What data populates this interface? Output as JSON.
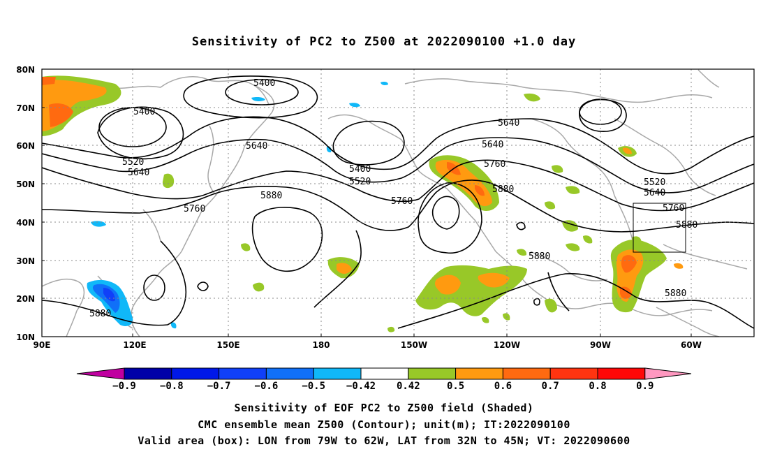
{
  "title": "Sensitivity of PC2 to Z500 at 2022090100 +1.0 day",
  "map": {
    "lat_labels": [
      "80N",
      "70N",
      "60N",
      "50N",
      "40N",
      "30N",
      "20N",
      "10N"
    ],
    "lon_labels": [
      "90E",
      "120E",
      "150E",
      "180",
      "150W",
      "120W",
      "90W",
      "60W"
    ],
    "lon_range": [
      "90E",
      "30W"
    ],
    "lat_range": [
      "10N",
      "80N"
    ],
    "contour_labels": [
      "5400",
      "5400",
      "5400",
      "5520",
      "5520",
      "5520",
      "5640",
      "5640",
      "5640",
      "5640",
      "5640",
      "5760",
      "5760",
      "5760",
      "5760",
      "5880",
      "5880",
      "5880",
      "5880",
      "5880",
      "5880"
    ],
    "box": {
      "lon": [
        "79W",
        "62W"
      ],
      "lat": [
        "32N",
        "45N"
      ]
    }
  },
  "colorbar": {
    "labels": [
      "-0.9",
      "-0.8",
      "-0.7",
      "-0.6",
      "-0.5",
      "-0.42",
      "0.42",
      "0.5",
      "0.6",
      "0.7",
      "0.8",
      "0.9"
    ],
    "colors": [
      "#c000a0",
      "#0000a8",
      "#0018e8",
      "#1040f8",
      "#1070f8",
      "#10b8f8",
      "#ffffff",
      "#98c828",
      "#ff9a10",
      "#ff6a10",
      "#ff3410",
      "#ff0808",
      "#ff98c0"
    ]
  },
  "captions": {
    "line1": "Sensitivity of EOF PC2 to Z500 field (Shaded)",
    "line2": "CMC ensemble mean Z500 (Contour); unit(m); IT:2022090100",
    "line3": "Valid area (box): LON from 79W to 62W, LAT from 32N to 45N; VT: 2022090600"
  }
}
